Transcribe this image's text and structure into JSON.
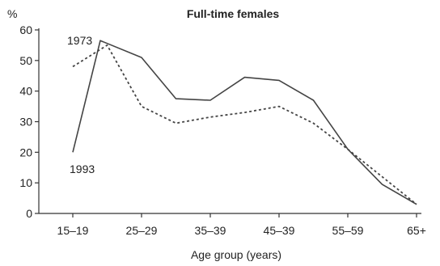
{
  "chart_data": {
    "type": "line",
    "title": "Full-time females",
    "ylabel": "%",
    "xlabel": "Age group (years)",
    "ylim": [
      0,
      60
    ],
    "yticks": [
      0,
      10,
      20,
      30,
      40,
      50,
      60
    ],
    "x_tick_labels": [
      "15–19",
      "25–29",
      "35–39",
      "45–39",
      "55–59",
      "65+"
    ],
    "x_tick_positions": [
      1,
      3,
      5,
      7,
      9,
      11
    ],
    "xlim": [
      1,
      11
    ],
    "series": [
      {
        "name": "1973",
        "style": "dotted",
        "x": [
          1,
          2,
          3,
          4,
          5,
          6,
          7,
          8,
          9,
          10,
          11
        ],
        "values": [
          48,
          55,
          35,
          29.5,
          31.5,
          33,
          35,
          29.5,
          21,
          12,
          3
        ]
      },
      {
        "name": "1993",
        "style": "solid",
        "x": [
          1,
          1.8,
          3,
          4,
          5,
          6,
          7,
          8,
          9,
          10,
          11
        ],
        "values": [
          20,
          56.5,
          51,
          37.5,
          37,
          44.5,
          43.5,
          37,
          21,
          9.5,
          3
        ]
      }
    ],
    "annotations": [
      {
        "text": "1973",
        "series": "1973"
      },
      {
        "text": "1993",
        "series": "1993"
      }
    ],
    "grid": false,
    "line_color": "#444444"
  }
}
